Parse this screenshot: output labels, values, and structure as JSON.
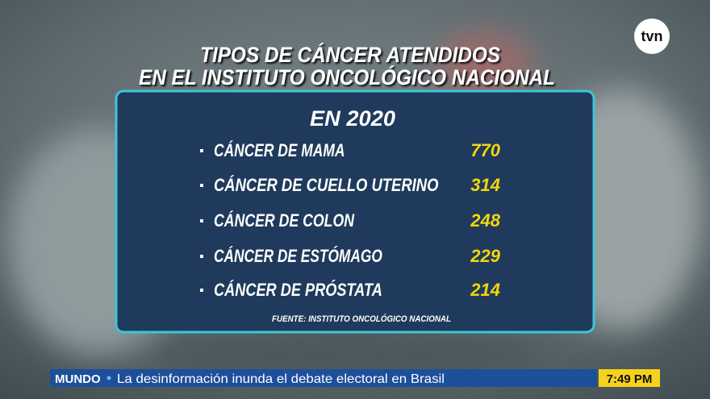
{
  "logo": "tvn",
  "title": [
    "TIPOS DE CÁNCER ATENDIDOS",
    "EN EL INSTITUTO ONCOLÓGICO NACIONAL"
  ],
  "panel": {
    "heading": "EN 2020",
    "items": [
      {
        "label": "CÁNCER DE MAMA",
        "value": 770
      },
      {
        "label": "CÁNCER DE CUELLO UTERINO",
        "value": 314
      },
      {
        "label": "CÁNCER DE COLON",
        "value": 248
      },
      {
        "label": "CÁNCER DE ESTÓMAGO",
        "value": 229
      },
      {
        "label": "CÁNCER DE PRÓSTATA",
        "value": 214
      }
    ],
    "source": "FUENTE: INSTITUTO ONCOLÓGICO NACIONAL"
  },
  "ticker": {
    "section": "MUNDO",
    "headline": "La desinformación inunda el debate electoral en Brasil",
    "time": "7:49 PM"
  }
}
